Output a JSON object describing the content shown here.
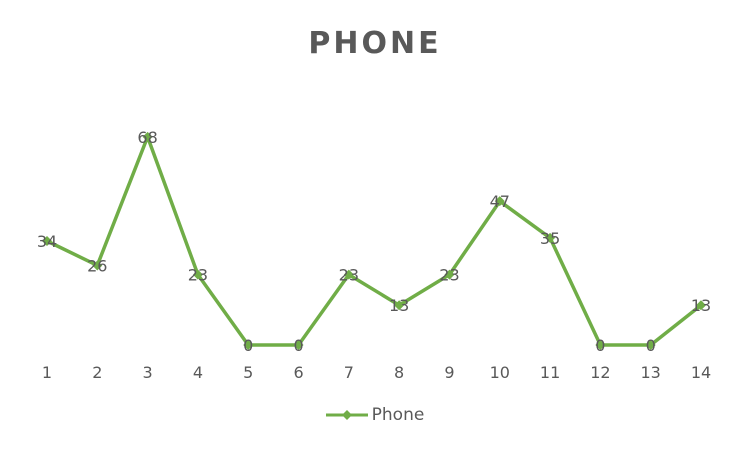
{
  "colors": {
    "series": "#70AD47",
    "text": "#595959"
  },
  "chart_data": {
    "type": "line",
    "title": "PHONE",
    "x": [
      "1",
      "2",
      "3",
      "4",
      "5",
      "6",
      "7",
      "8",
      "9",
      "10",
      "11",
      "12",
      "13",
      "14"
    ],
    "series": [
      {
        "name": "Phone",
        "values": [
          34,
          26,
          68,
          23,
          0,
          0,
          23,
          13,
          23,
          47,
          35,
          0,
          0,
          13
        ]
      }
    ],
    "data_labels": true,
    "ylim": [
      0,
      80
    ],
    "grid": false,
    "legend": "bottom",
    "marker": "diamond"
  }
}
